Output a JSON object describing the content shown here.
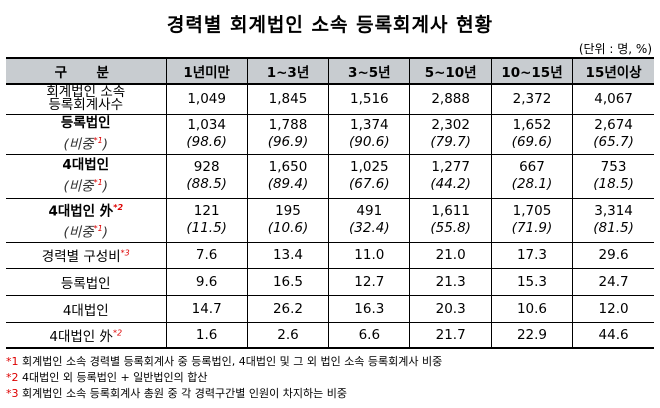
{
  "title": "경력별 회계법인 소속 등록회계사 현황",
  "unit": "(단위 : 명, %)",
  "header": [
    "구　분",
    "1년미만",
    "1~3년",
    "3~5년",
    "5~10년",
    "10~15년",
    "15년이상"
  ],
  "rows": {
    "total": {
      "label_line1": "회계법인 소속",
      "label_line2": "등록회계사수",
      "values": [
        "1,049",
        "1,845",
        "1,516",
        "2,888",
        "2,372",
        "4,067"
      ]
    },
    "reg": {
      "label": "등록법인",
      "sub_label": "(비중",
      "sup": "*1",
      "sub_close": ")",
      "values": [
        "1,034",
        "1,788",
        "1,374",
        "2,302",
        "1,652",
        "2,674"
      ],
      "ratios": [
        "(98.6)",
        "(96.9)",
        "(90.6)",
        "(79.7)",
        "(69.6)",
        "(65.7)"
      ]
    },
    "big4": {
      "label": "4대법인",
      "sub_label": "(비중",
      "sup": "*1",
      "sub_close": ")",
      "values": [
        "928",
        "1,650",
        "1,025",
        "1,277",
        "667",
        "753"
      ],
      "ratios": [
        "(88.5)",
        "(89.4)",
        "(67.6)",
        "(44.2)",
        "(28.1)",
        "(18.5)"
      ]
    },
    "nonbig4": {
      "label": "4대법인 外",
      "label_sup": "*2",
      "sub_label": "(비중",
      "sup": "*1",
      "sub_close": ")",
      "values": [
        "121",
        "195",
        "491",
        "1,611",
        "1,705",
        "3,314"
      ],
      "ratios": [
        "(11.5)",
        "(10.6)",
        "(32.4)",
        "(55.8)",
        "(71.9)",
        "(81.5)"
      ]
    },
    "comp": {
      "label": "경력별 구성비",
      "label_sup": "*3",
      "values": [
        "7.6",
        "13.4",
        "11.0",
        "21.0",
        "17.3",
        "29.6"
      ]
    },
    "comp_reg": {
      "label": "등록법인",
      "values": [
        "9.6",
        "16.5",
        "12.7",
        "21.3",
        "15.3",
        "24.7"
      ]
    },
    "comp_big4": {
      "label": "4대법인",
      "values": [
        "14.7",
        "26.2",
        "16.3",
        "20.3",
        "10.6",
        "12.0"
      ]
    },
    "comp_nonbig4": {
      "label": "4대법인 外",
      "label_sup": "*2",
      "values": [
        "1.6",
        "2.6",
        "6.6",
        "21.7",
        "22.9",
        "44.6"
      ]
    }
  },
  "notes": [
    {
      "mark": "*1",
      "text": " 회계법인 소속 경력별 등록회계사 중 등록법인, 4대법인 및 그 외 법인 소속 등록회계사 비중"
    },
    {
      "mark": "*2",
      "text": " 4대법인 외 등록법인 + 일반법인의 합산"
    },
    {
      "mark": "*3",
      "text": " 회계법인 소속 등록회계사 총원 중 각 경력구간별 인원이 차지하는 비중"
    }
  ]
}
